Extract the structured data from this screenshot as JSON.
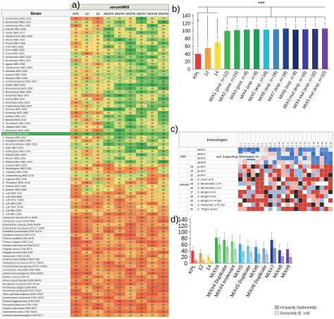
{
  "panels": {
    "a": {
      "letter": "a)",
      "header_group": "serum/MIX",
      "strain_header": "Strain",
      "columns": [
        "KPL",
        "12",
        "14",
        "MIX#4",
        "MIX#5",
        "MIX#6",
        "MIX#7",
        "MIX#8",
        "MIX#9"
      ],
      "strains": [
        "S. Senftenberg NBS-1511",
        "S. Montevideo NBS-1237",
        "S. Heidelberg NBS-1558",
        "S. Infantis NBS-1549",
        "S. Hadar NBS-1217",
        "S. Typhimurium NBS-1544",
        "S. Abony NBS-1510",
        "S. Poona NBS-1509",
        "S. Ohio NBS-1536",
        "S. Cerro NBS-1528",
        "S. Cerro NBS-1529",
        "S. Montevideo NBS-1330",
        "S. Montevideo NBS-1331",
        "S. Agona NBS-1562",
        "S. Typhimurium NBS-1663",
        "S. Adelaide NBS-1550",
        "S. Anatum NBS-1559",
        "S. Newport NBS-1548",
        "S. Schwarzengrund NBS-1547",
        "S. Dublin NBS-1543",
        "S. Brandenburg NBS-1596",
        "S. Braenderup NBS-1595",
        "S. Enteritidis NBS-1542",
        "S. Derby NBS-1219",
        "S. Mbandaka NBS-1539",
        "S. Oranienburg NBS-1657",
        "S. Virchow NBS-1556",
        "S. Kentucky NBS-1655",
        "S. Kottbus NBS-1517",
        "S. Bareilly NBS-1216",
        "S. Tennessee NBS-1546",
        "S. Javiana NBS-1561",
        "S. Muenchen NBS-1560",
        "S. Saintpaul NBS-1656",
        "S. Stanley NBS-1557",
        "S. Paratyphi B NBS-1545",
        "S. Bovismorbificans NBS-1552",
        "S. Give NBS-1515",
        "S. Hvittingfoss NBS-1541",
        "S. Infantis NBS-1554",
        "S. Rissen NBS-1553",
        "S. Weltevreden NBS-1540",
        "S. Cubana NBS-1555",
        "S. Worthington NBS-1551",
        "S. Litchfield NBS-1563",
        "S. Johannesburg NBS-1216",
        "S. Uganda NBS-1538",
        "S. Thompson NBS-1218",
        "S. Indiana NBS-1566",
        "S. Anatum NBS-1565",
        "E. coli DSM 1103",
        "E. coli DSM 8698",
        "E. coli ATCC 25922",
        "E. coli NBS-2305",
        "E. coli DSM 11250",
        "E. coli NBS-2501",
        "E. coli NBS-2330",
        "Citrobacter freundii ATCC 8090",
        "Citrobacter koseri DSM 4595",
        "Enterobacter cloacae DSM 30054",
        "Enterobacter aerogenes ATCC 13048",
        "Klebsiella pneumoniae DSM 30104",
        "Klebsiella oxytoca DSM 5175",
        "Proteus mirabilis DSM 4479",
        "Proteus vulgaris DSM 2140",
        "Serratia marcescens DSM 30121",
        "Shigella sonnei DSM 5570",
        "Shigella flexneri DSM 4782",
        "Hafnia alvei DSM 30163",
        "Yersinia enterocolitica DSM 4780",
        "Staphylococcus aureus ATCC 25923",
        "Pseudomonas aeruginosa ATCC 27853",
        "Cronobacter sakazakii DSM 4485",
        "Listeria monocytogenes DSM 20600",
        "Bacillus cereus DSM 31",
        "Enterococcus faecalis DSM 20478",
        "Morganella morganii DSM 30164",
        "Providencia rettgeri DSM 4542",
        "Aeromonas hydrophila DSM 30187",
        "Vibrio parahaemolyticus DSM 10027",
        "Acinetobacter baumannii DSM 30007",
        "Pantoea agglomerans DSM 3493",
        "Raoultella planticola DSM 3069",
        "Kluyvera ascorbata DSM 4611",
        "Edwardsiella tarda DSM 30052",
        "Leclercia adecarboxylata DSM 5077"
      ]
    },
    "b": {
      "letter": "b)",
      "significance": "***",
      "significance_small": "*",
      "y_ticks": [
        "0",
        "20",
        "40",
        "60",
        "80",
        "100",
        "120",
        "140"
      ],
      "categories": [
        "KPL",
        "12",
        "14",
        "MIX1 (prot. n=12)",
        "MIX2 (prot. n=24)",
        "MIX3 (prot. n=8)",
        "MIX4 (exp. n=8)",
        "MIX5 (exp. n=16)",
        "MIX6 (exp. n=16)",
        "MIX7 (exp. n=16)",
        "MIX8 (exp. n=8)",
        "MIX3 mut (exp. n=16)",
        "MIX4 mut (exp. n=32)",
        "MIX5 mut (exp. n=32)"
      ]
    },
    "c": {
      "letter": "c)",
      "immunogen_header": "Immunogen",
      "group_mix": "mix",
      "group_serum": "serum",
      "supporting_text": "see Supporting Information S6",
      "mix_rows": [
        "MIXF1",
        "MIXF2",
        "MIXF3",
        "MIXF4"
      ],
      "serum_rows": [
        "protF1",
        "protF2",
        "protF3",
        "S. Cerro D-N",
        "S. Montevideo O-N",
        "S. Montevideo O-H",
        "S. Bergen H-N",
        "S. Bergen H-M",
        "S. Bergen O-47 (K)",
        "S. Houtenae O-47 (K)",
        "S. Tingen aurea"
      ],
      "serum_ids": [
        "28",
        "29",
        "32",
        "34",
        "35",
        "36",
        "37",
        "38",
        "39",
        "40",
        "42"
      ]
    },
    "d": {
      "letter": "d)",
      "y_ticks": [
        "0",
        "20",
        "40",
        "60",
        "80",
        "100",
        "120",
        "140"
      ],
      "categories": [
        "KPL",
        "12",
        "14",
        "MIX#4",
        "MIX#4 Duplicate",
        "MIX#4 Irrelevant",
        "MIX#5",
        "MIX#5 Duplicate",
        "MIX#6",
        "MIX#6 Duplicate",
        "MIX#7",
        "MIX#8",
        "MIX#9"
      ],
      "legend_inclusivity": "Inclusivity (Salmonella)",
      "legend_exclusivity": "Exclusivity (E. coli)"
    }
  },
  "chart_data": [
    {
      "type": "bar",
      "title": "",
      "categories": [
        "KPL",
        "12",
        "14",
        "MIX1 (prot. n=12)",
        "MIX2 (prot. n=24)",
        "MIX3 (prot. n=8)",
        "MIX4 (exp. n=8)",
        "MIX5 (exp. n=16)",
        "MIX6 (exp. n=16)",
        "MIX7 (exp. n=16)",
        "MIX8 (exp. n=8)",
        "MIX3 mut (exp. n=16)",
        "MIX4 mut (exp. n=32)",
        "MIX5 mut (exp. n=32)"
      ],
      "values": [
        40,
        55,
        70,
        100,
        102,
        103,
        104,
        103,
        104,
        106,
        103,
        104,
        105,
        106
      ],
      "errors": [
        12,
        18,
        15,
        10,
        12,
        11,
        12,
        13,
        12,
        14,
        12,
        13,
        14,
        15
      ],
      "colors": [
        "#e8393b",
        "#f5a23c",
        "#f6e03b",
        "#3fb54a",
        "#2ea84e",
        "#28a35a",
        "#1c9a5a",
        "#2bb7d9",
        "#3a86c7",
        "#1e3f8a",
        "#142a6b",
        "#3b3f9a",
        "#2c3472",
        "#6d42a3"
      ],
      "ylim": [
        0,
        140
      ],
      "xlabel": "",
      "ylabel": ""
    },
    {
      "type": "bar",
      "title": "",
      "categories": [
        "KPL",
        "12",
        "14",
        "MIX#4",
        "MIX#4 Duplicate",
        "MIX#4 Irrelevant",
        "MIX#5",
        "MIX#5 Duplicate",
        "MIX#6",
        "MIX#6 Duplicate",
        "MIX#7",
        "MIX#8",
        "MIX#9"
      ],
      "series": [
        {
          "name": "Inclusivity (Salmonella)",
          "values": [
            40,
            32,
            20,
            82,
            75,
            70,
            62,
            55,
            52,
            48,
            75,
            42,
            45
          ],
          "errors": [
            12,
            10,
            8,
            25,
            22,
            20,
            25,
            18,
            20,
            18,
            25,
            18,
            18
          ]
        },
        {
          "name": "Exclusivity (E. coli)",
          "values": [
            10,
            8,
            6,
            60,
            52,
            45,
            38,
            35,
            30,
            28,
            48,
            22,
            20
          ],
          "errors": [
            5,
            4,
            3,
            22,
            20,
            18,
            18,
            15,
            15,
            12,
            22,
            10,
            10
          ]
        }
      ],
      "colors": [
        "#e8393b",
        "#f5a23c",
        "#f6e03b",
        "#3fb54a",
        "#55c06a",
        "#7fcf8a",
        "#2bb7d9",
        "#6fcbe5",
        "#3a86c7",
        "#7aa9d8",
        "#1e3f8a",
        "#3b3f9a",
        "#6d42a3"
      ],
      "ylim": [
        0,
        140
      ],
      "xlabel": "",
      "ylabel": ""
    }
  ]
}
